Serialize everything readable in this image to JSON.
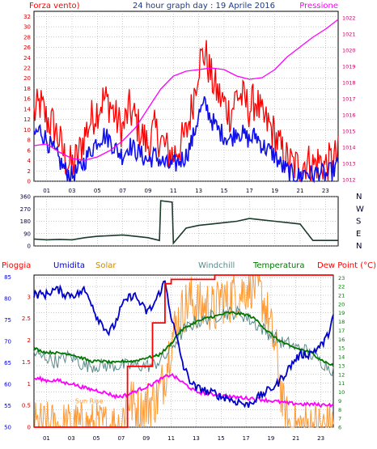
{
  "chart_data": [
    {
      "type": "line",
      "header": {
        "left": "Forza vento)",
        "center": "24 hour graph day : 19 Aprile 2016",
        "right": "Pressione"
      },
      "x_ticks": [
        "01",
        "03",
        "05",
        "07",
        "09",
        "11",
        "13",
        "15",
        "17",
        "19",
        "21",
        "23"
      ],
      "y_left_ticks": [
        0,
        2,
        4,
        6,
        8,
        10,
        12,
        14,
        16,
        18,
        20,
        22,
        24,
        26,
        28,
        30,
        32
      ],
      "ylim_left": [
        0,
        33
      ],
      "y_right_ticks": [
        1012,
        1013,
        1014,
        1015,
        1016,
        1017,
        1018,
        1019,
        1020,
        1021,
        1022
      ],
      "ylim_right": [
        1011.9,
        1022.4
      ],
      "colors": {
        "gust": "#ff0000",
        "wind": "#1010ee",
        "pressure": "#ff00ff",
        "left_axis": "#cc0000",
        "right_axis": "#cc0066"
      },
      "series": [
        {
          "key": "gust",
          "x": [
            0,
            0.5,
            1,
            1.5,
            2,
            2.5,
            3,
            3.5,
            4,
            4.5,
            5,
            5.5,
            6,
            6.5,
            7,
            7.5,
            8,
            8.5,
            9,
            9.5,
            10,
            10.5,
            11,
            11.5,
            12,
            12.5,
            13,
            13.5,
            14,
            14.5,
            15,
            15.5,
            16,
            16.5,
            17,
            17.5,
            18,
            18.5,
            19,
            19.5,
            20,
            20.5,
            21,
            21.5,
            22,
            22.5,
            23,
            23.5,
            24
          ],
          "values": [
            13,
            15,
            12,
            11,
            8,
            4,
            3,
            5,
            9,
            12,
            14,
            16,
            15,
            12,
            10,
            14,
            12,
            9,
            7,
            10,
            8,
            6,
            5,
            7,
            9,
            15,
            23,
            25,
            20,
            17,
            15,
            13,
            17,
            16,
            14,
            16,
            12,
            11,
            9,
            6,
            4,
            3,
            3,
            4,
            3,
            4,
            3,
            4,
            5
          ],
          "jitter": 4
        },
        {
          "key": "wind",
          "x": [
            0,
            0.5,
            1,
            1.5,
            2,
            2.5,
            3,
            3.5,
            4,
            4.5,
            5,
            5.5,
            6,
            6.5,
            7,
            7.5,
            8,
            8.5,
            9,
            9.5,
            10,
            10.5,
            11,
            11.5,
            12,
            12.5,
            13,
            13.5,
            14,
            14.5,
            15,
            15.5,
            16,
            16.5,
            17,
            17.5,
            18,
            18.5,
            19,
            19.5,
            20,
            20.5,
            21,
            21.5,
            22,
            22.5,
            23,
            23.5,
            24
          ],
          "values": [
            9,
            10,
            8,
            6,
            4,
            2,
            1,
            2,
            4,
            6,
            8,
            9,
            8,
            6,
            5,
            7,
            6,
            5,
            4,
            5,
            4,
            3,
            3,
            4,
            5,
            8,
            13,
            15,
            12,
            10,
            9,
            8,
            10,
            9,
            8,
            9,
            7,
            6,
            5,
            3,
            2,
            1,
            1,
            2,
            1,
            2,
            1,
            2,
            3
          ],
          "jitter": 2
        },
        {
          "key": "pressure",
          "x": [
            0,
            1,
            2,
            3,
            4,
            5,
            6,
            7,
            8,
            9,
            10,
            11,
            12,
            13,
            14,
            15,
            16,
            17,
            18,
            19,
            20,
            21,
            22,
            23,
            24
          ],
          "values": [
            1014.1,
            1014.2,
            1013.7,
            1013.3,
            1013.2,
            1013.4,
            1013.8,
            1014.4,
            1015.2,
            1016.4,
            1017.6,
            1018.4,
            1018.7,
            1018.8,
            1018.9,
            1018.8,
            1018.4,
            1018.2,
            1018.3,
            1018.8,
            1019.6,
            1020.2,
            1020.8,
            1021.3,
            1021.9
          ]
        }
      ]
    },
    {
      "type": "line",
      "title": "",
      "y_ticks": [
        0,
        90,
        180,
        270,
        360
      ],
      "ylim": [
        0,
        360
      ],
      "compass": [
        "N",
        "W",
        "S",
        "E",
        "N"
      ],
      "color": "#1a3a2a",
      "series": [
        {
          "key": "winddir",
          "x": [
            0,
            1,
            2,
            3,
            4,
            5,
            6,
            7,
            8,
            9,
            9.9,
            10,
            10.9,
            11,
            12,
            13,
            14,
            15,
            16,
            17,
            18,
            19,
            20,
            21,
            22,
            23,
            24
          ],
          "values": [
            50,
            45,
            48,
            45,
            60,
            70,
            75,
            80,
            70,
            60,
            40,
            330,
            320,
            20,
            130,
            150,
            160,
            170,
            180,
            200,
            190,
            180,
            170,
            160,
            40,
            40,
            40
          ]
        }
      ]
    },
    {
      "type": "line",
      "header": {
        "pioggia": "Pioggia",
        "umidita": "Umidita",
        "solar": "Solar",
        "windchill": "Windchill",
        "temperatura": "Temperatura",
        "dewpoint": "Dew Point (°C)"
      },
      "sun_rise_label": "Sun Rise",
      "x_ticks": [
        "01",
        "03",
        "05",
        "07",
        "09",
        "11",
        "13",
        "15",
        "17",
        "19",
        "21",
        "23"
      ],
      "y_left_ticks": [
        0,
        0.5,
        1,
        1.5,
        2,
        2.5,
        3
      ],
      "ylim_left": [
        0,
        3.5
      ],
      "y_humidity_ticks": [
        50,
        55,
        60,
        65,
        70,
        75,
        80,
        85
      ],
      "ylim_humidity": [
        50,
        85.5
      ],
      "y_right_ticks": [
        6,
        7,
        8,
        9,
        10,
        11,
        12,
        13,
        14,
        15,
        16,
        17,
        18,
        19,
        20,
        21,
        22,
        23
      ],
      "ylim_right": [
        6,
        23.3
      ],
      "colors": {
        "rain": "#ff0000",
        "humidity": "#0000cc",
        "solar": "#ff9933",
        "windchill": "#5a8a8a",
        "temperature": "#007700",
        "dewpoint": "#ff00ff"
      },
      "series": [
        {
          "key": "rain",
          "x": [
            0,
            7.5,
            7.5,
            9.5,
            9.5,
            10.5,
            10.5,
            11,
            11,
            13,
            13,
            14.5,
            14.5,
            16,
            16,
            19.5,
            19.5,
            24
          ],
          "values": [
            0,
            0,
            1.4,
            1.4,
            2.4,
            2.4,
            3.3,
            3.3,
            3.4,
            3.4,
            3.4,
            3.4,
            3.5,
            3.5,
            3.5,
            3.5,
            3.5,
            3.5
          ]
        },
        {
          "key": "humidity",
          "x": [
            0,
            0.5,
            1,
            1.5,
            2,
            2.5,
            3,
            3.5,
            4,
            4.5,
            5,
            5.5,
            6,
            6.5,
            7,
            7.5,
            8,
            8.5,
            9,
            9.5,
            10,
            10.5,
            11,
            11.5,
            12,
            12.5,
            13,
            13.5,
            14,
            14.5,
            15,
            15.5,
            16,
            16.5,
            17,
            17.5,
            18,
            18.5,
            19,
            19.5,
            20,
            20.5,
            21,
            21.5,
            22,
            22.5,
            23,
            23.5,
            24
          ],
          "values": [
            81,
            81,
            81,
            82,
            82,
            81,
            81,
            81,
            82,
            80,
            76,
            74,
            72,
            74,
            78,
            80,
            81,
            79,
            77,
            78,
            81,
            84,
            76,
            70,
            64,
            61,
            59,
            59,
            58,
            58,
            57,
            57,
            56,
            56,
            55,
            56,
            57,
            58,
            59,
            60,
            62,
            64,
            66,
            67,
            67,
            68,
            69,
            71,
            76
          ],
          "jitter": 1
        },
        {
          "key": "solar",
          "x": [
            0,
            6,
            7,
            7.5,
            8,
            8.5,
            9,
            9.5,
            10,
            10.5,
            11,
            11.5,
            12,
            12.5,
            13,
            13.5,
            14,
            14.5,
            15,
            15.5,
            16,
            16.5,
            17,
            17.5,
            18,
            18.5,
            19,
            19.5,
            20,
            20.5,
            21,
            24
          ],
          "values": [
            6,
            6,
            6.2,
            9.5,
            8.5,
            7.5,
            8.5,
            9,
            9.5,
            12,
            16,
            18,
            19.5,
            20.5,
            20,
            19.5,
            20,
            19,
            21,
            20,
            21.5,
            21,
            22,
            22.5,
            21.5,
            20,
            17,
            14,
            8,
            6,
            6,
            6
          ],
          "jitter": 3
        },
        {
          "key": "windchill",
          "x": [
            0,
            0.5,
            1,
            1.5,
            2,
            2.5,
            3,
            3.5,
            4,
            4.5,
            5,
            5.5,
            6,
            6.5,
            7,
            7.5,
            8,
            8.5,
            9,
            9.5,
            10,
            10.5,
            11,
            11.5,
            12,
            12.5,
            13,
            13.5,
            14,
            14.5,
            15,
            15.5,
            16,
            16.5,
            17,
            17.5,
            18,
            18.5,
            19,
            19.5,
            20,
            20.5,
            21,
            21.5,
            22,
            22.5,
            23,
            23.5,
            24
          ],
          "values": [
            14.5,
            14,
            14,
            13.5,
            13.5,
            14,
            14,
            13.5,
            13,
            13,
            13,
            13,
            13,
            13,
            13,
            13,
            13,
            13,
            13,
            13,
            13.5,
            14,
            15,
            16,
            17,
            17.5,
            18,
            18,
            18.5,
            18.5,
            19,
            19,
            19,
            19,
            18.5,
            18,
            17.5,
            17,
            16.5,
            16,
            15.5,
            15.5,
            15,
            15,
            14.5,
            14,
            13.5,
            13,
            12.5
          ],
          "jitter": 0.8
        },
        {
          "key": "temperature",
          "x": [
            0,
            0.5,
            1,
            1.5,
            2,
            2.5,
            3,
            3.5,
            4,
            4.5,
            5,
            5.5,
            6,
            6.5,
            7,
            7.5,
            8,
            8.5,
            9,
            9.5,
            10,
            10.5,
            11,
            11.5,
            12,
            12.5,
            13,
            13.5,
            14,
            14.5,
            15,
            15.5,
            16,
            16.5,
            17,
            17.5,
            18,
            18.5,
            19,
            19.5,
            20,
            20.5,
            21,
            21.5,
            22,
            22.5,
            23,
            23.5,
            24
          ],
          "values": [
            15,
            14.7,
            14.5,
            14.5,
            14.4,
            14.4,
            14.3,
            14,
            13.8,
            13.5,
            13.5,
            13.5,
            13.4,
            13.3,
            13.5,
            13.5,
            13.5,
            13.7,
            13.9,
            14,
            14.2,
            14.8,
            15.5,
            16.5,
            17.2,
            17.6,
            18,
            18.2,
            18.5,
            18.6,
            18.8,
            19,
            19,
            18.9,
            18.8,
            18.5,
            18,
            17.2,
            16.6,
            16,
            15.6,
            15.2,
            15,
            14.8,
            14.6,
            14.2,
            13.7,
            13.3,
            13
          ],
          "jitter": 0.15
        },
        {
          "key": "dewpoint",
          "x": [
            0,
            0.5,
            1,
            1.5,
            2,
            2.5,
            3,
            3.5,
            4,
            4.5,
            5,
            5.5,
            6,
            6.5,
            7,
            7.5,
            8,
            8.5,
            9,
            9.5,
            10,
            10.5,
            11,
            11.5,
            12,
            12.5,
            13,
            13.5,
            14,
            14.5,
            15,
            15.5,
            16,
            16.5,
            17,
            17.5,
            18,
            18.5,
            19,
            19.5,
            20,
            20.5,
            21,
            21.5,
            22,
            22.5,
            23,
            23.5,
            24
          ],
          "values": [
            11.5,
            11.5,
            11.3,
            11.3,
            11.3,
            11,
            11,
            10.7,
            10.5,
            10.3,
            10.2,
            10,
            9.8,
            9.5,
            9.5,
            9.7,
            10,
            10.3,
            10.6,
            10.9,
            11.3,
            11.7,
            12,
            11.5,
            11,
            10.5,
            10,
            9.9,
            9.8,
            9.7,
            9.6,
            9.5,
            9.4,
            9.4,
            9.3,
            9.3,
            9.2,
            9.1,
            9,
            8.9,
            8.8,
            8.7,
            8.7,
            8.6,
            8.6,
            8.6,
            8.5,
            8.6,
            8.5
          ],
          "jitter": 0.2
        }
      ]
    }
  ]
}
